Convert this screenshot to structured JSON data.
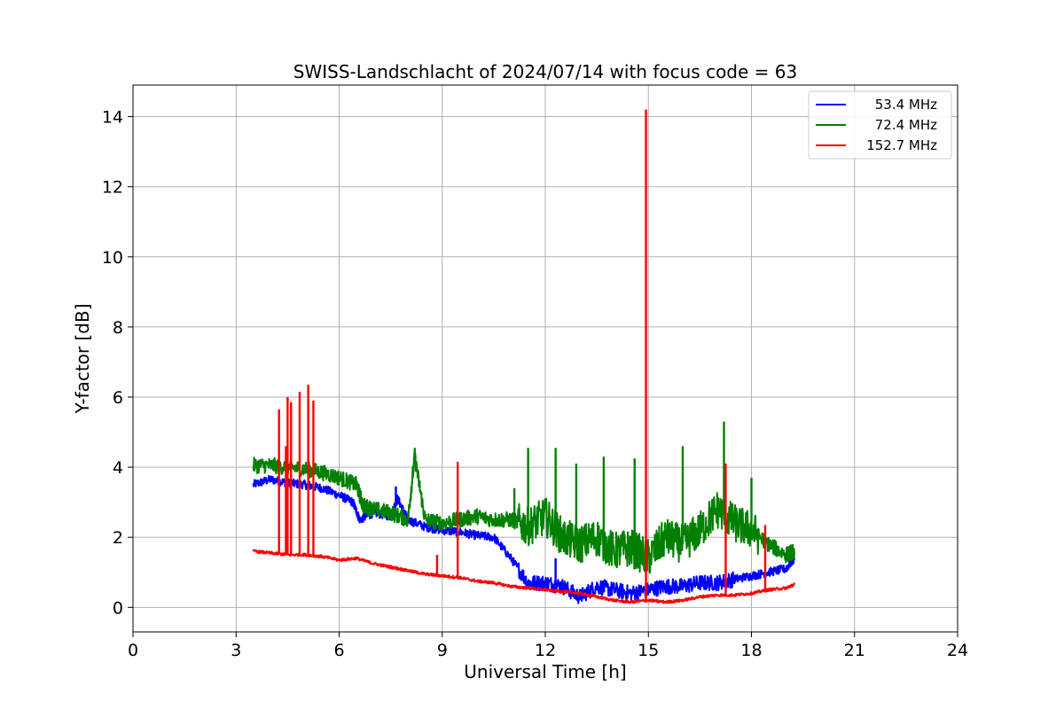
{
  "chart_data": {
    "type": "line",
    "title": "SWISS-Landschlacht of 2024/07/14 with focus code = 63",
    "xlabel": "Universal Time [h]",
    "ylabel": "Y-factor [dB]",
    "xlim": [
      0,
      24
    ],
    "ylim": [
      -0.7,
      14.9
    ],
    "xticks": [
      0,
      3,
      6,
      9,
      12,
      15,
      18,
      21,
      24
    ],
    "yticks": [
      0,
      2,
      4,
      6,
      8,
      10,
      12,
      14
    ],
    "grid": true,
    "legend_position": "top-right",
    "series": [
      {
        "name": "53.4 MHz",
        "color": "#0000ff",
        "x": [
          3.5,
          4.0,
          4.5,
          5.0,
          5.5,
          6.0,
          6.4,
          6.6,
          7.0,
          7.5,
          7.7,
          8.0,
          8.5,
          9.0,
          9.5,
          10.0,
          10.5,
          11.0,
          11.5,
          12.0,
          12.5,
          13.0,
          13.5,
          14.0,
          14.5,
          15.0,
          15.5,
          16.0,
          16.5,
          17.0,
          17.5,
          18.0,
          18.5,
          19.0,
          19.25
        ],
        "y": [
          3.5,
          3.65,
          3.55,
          3.5,
          3.4,
          3.2,
          3.0,
          2.5,
          2.7,
          2.6,
          3.1,
          2.5,
          2.3,
          2.2,
          2.15,
          2.05,
          2.0,
          1.4,
          0.7,
          0.7,
          0.6,
          0.3,
          0.6,
          0.5,
          0.4,
          0.5,
          0.6,
          0.6,
          0.7,
          0.7,
          0.8,
          0.9,
          1.0,
          1.1,
          1.4
        ]
      },
      {
        "name": "72.4 MHz",
        "color": "#008000",
        "x": [
          3.5,
          4.0,
          4.5,
          5.0,
          5.5,
          6.0,
          6.5,
          6.7,
          7.0,
          7.5,
          8.0,
          8.2,
          8.5,
          9.0,
          9.5,
          10.0,
          10.5,
          11.0,
          11.5,
          12.0,
          12.5,
          13.0,
          13.5,
          14.0,
          14.5,
          15.0,
          15.5,
          16.0,
          16.5,
          17.0,
          17.5,
          18.0,
          18.5,
          19.0,
          19.25
        ],
        "y": [
          4.05,
          4.05,
          4.0,
          3.95,
          3.85,
          3.7,
          3.5,
          2.9,
          2.8,
          2.7,
          2.5,
          4.3,
          2.5,
          2.4,
          2.5,
          2.6,
          2.5,
          2.5,
          2.3,
          2.6,
          2.0,
          1.8,
          2.0,
          1.6,
          1.7,
          1.4,
          2.0,
          1.8,
          2.2,
          2.8,
          2.4,
          2.2,
          1.8,
          1.5,
          1.6
        ]
      },
      {
        "name": "152.7 MHz",
        "color": "#ff0000",
        "x": [
          3.5,
          4.0,
          4.5,
          5.0,
          5.5,
          6.0,
          6.5,
          7.0,
          7.5,
          8.0,
          8.5,
          9.0,
          9.5,
          10.0,
          10.5,
          11.0,
          11.5,
          12.0,
          12.5,
          13.0,
          13.5,
          14.0,
          14.5,
          15.0,
          15.5,
          16.0,
          16.5,
          17.0,
          17.5,
          18.0,
          18.5,
          19.0,
          19.25
        ],
        "y": [
          1.6,
          1.55,
          1.5,
          1.5,
          1.45,
          1.35,
          1.4,
          1.25,
          1.15,
          1.05,
          0.95,
          0.9,
          0.85,
          0.75,
          0.7,
          0.6,
          0.55,
          0.5,
          0.45,
          0.4,
          0.3,
          0.2,
          0.15,
          0.2,
          0.15,
          0.2,
          0.3,
          0.35,
          0.35,
          0.4,
          0.5,
          0.55,
          0.65
        ]
      }
    ],
    "spikes": [
      {
        "series": "152.7 MHz",
        "x": 4.25,
        "y": 5.65
      },
      {
        "series": "152.7 MHz",
        "x": 4.45,
        "y": 4.6
      },
      {
        "series": "152.7 MHz",
        "x": 4.5,
        "y": 6.0
      },
      {
        "series": "152.7 MHz",
        "x": 4.6,
        "y": 5.85
      },
      {
        "series": "152.7 MHz",
        "x": 4.85,
        "y": 6.15
      },
      {
        "series": "152.7 MHz",
        "x": 5.1,
        "y": 6.35
      },
      {
        "series": "152.7 MHz",
        "x": 5.25,
        "y": 5.9
      },
      {
        "series": "152.7 MHz",
        "x": 8.85,
        "y": 1.5
      },
      {
        "series": "152.7 MHz",
        "x": 9.45,
        "y": 4.15
      },
      {
        "series": "152.7 MHz",
        "x": 14.93,
        "y": 14.2
      },
      {
        "series": "152.7 MHz",
        "x": 17.25,
        "y": 4.1
      },
      {
        "series": "152.7 MHz",
        "x": 18.4,
        "y": 2.35
      },
      {
        "series": "72.4 MHz",
        "x": 8.2,
        "y": 4.55
      },
      {
        "series": "72.4 MHz",
        "x": 11.1,
        "y": 3.4
      },
      {
        "series": "72.4 MHz",
        "x": 11.5,
        "y": 4.55
      },
      {
        "series": "72.4 MHz",
        "x": 12.3,
        "y": 4.55
      },
      {
        "series": "72.4 MHz",
        "x": 12.9,
        "y": 4.1
      },
      {
        "series": "72.4 MHz",
        "x": 13.7,
        "y": 4.3
      },
      {
        "series": "72.4 MHz",
        "x": 14.6,
        "y": 4.25
      },
      {
        "series": "72.4 MHz",
        "x": 16.0,
        "y": 4.6
      },
      {
        "series": "72.4 MHz",
        "x": 17.2,
        "y": 5.3
      },
      {
        "series": "72.4 MHz",
        "x": 18.0,
        "y": 3.7
      },
      {
        "series": "53.4 MHz",
        "x": 7.65,
        "y": 3.45
      },
      {
        "series": "53.4 MHz",
        "x": 12.3,
        "y": 1.4
      }
    ]
  }
}
